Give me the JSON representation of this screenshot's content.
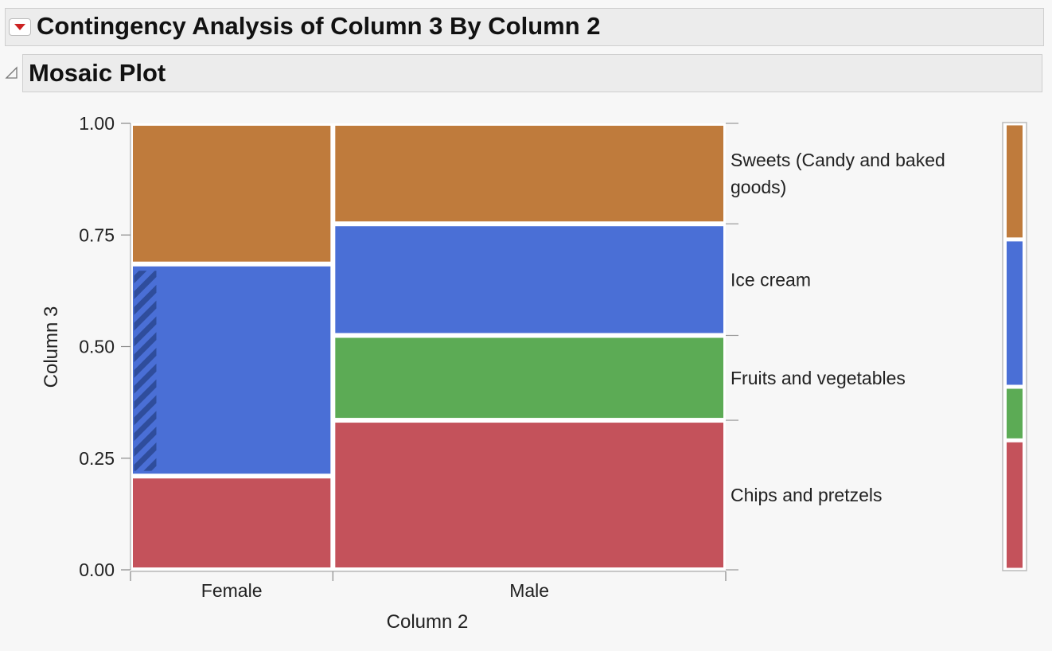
{
  "report": {
    "title": "Contingency Analysis of Column 3 By Column 2",
    "section_title": "Mosaic Plot"
  },
  "icons": {
    "disclosure": "red-down-triangle-icon",
    "collapse": "outline-collapse-triangle-icon"
  },
  "chart_data": {
    "type": "mosaic",
    "xlabel": "Column 2",
    "ylabel": "Column 3",
    "ylim": [
      0,
      1
    ],
    "yticks": [
      "0.00",
      "0.25",
      "0.50",
      "0.75",
      "1.00"
    ],
    "categories": [
      "Female",
      "Male"
    ],
    "column_widths": [
      0.34,
      0.66
    ],
    "series": [
      {
        "name": "Chips and pretzels",
        "color": "#c4525b",
        "values": [
          0.21,
          0.335
        ]
      },
      {
        "name": "Fruits and vegetables",
        "color": "#5cab55",
        "values": [
          0.0,
          0.19
        ]
      },
      {
        "name": "Ice cream",
        "color": "#4a6fd6",
        "values": [
          0.475,
          0.25
        ]
      },
      {
        "name": "Sweets (Candy and baked goods)",
        "color": "#bf7b3c",
        "values": [
          0.315,
          0.225
        ]
      }
    ],
    "overall_shares": [
      0.29,
      0.12,
      0.33,
      0.26
    ],
    "legend_position": "right",
    "highlight": {
      "category": "Female",
      "series": "Ice cream",
      "pattern": "hatched"
    },
    "grid": false
  }
}
